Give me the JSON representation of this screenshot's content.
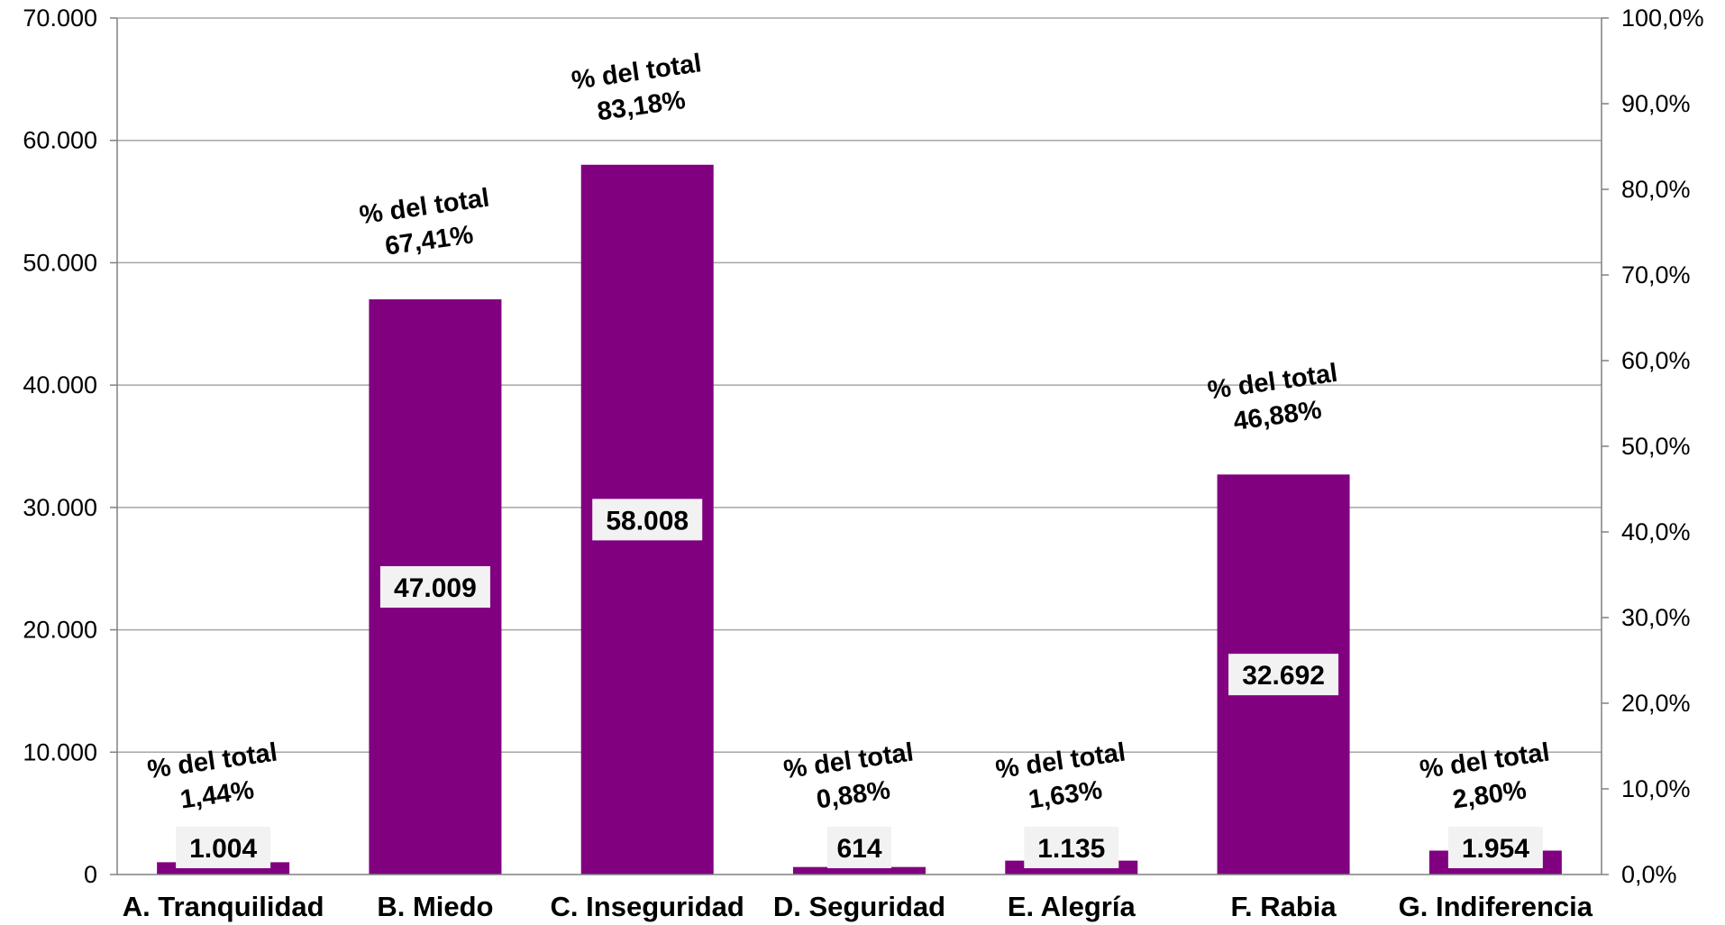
{
  "chart_data": {
    "type": "bar",
    "categories": [
      "A. Tranquilidad",
      "B. Miedo",
      "C. Inseguridad",
      "D. Seguridad",
      "E. Alegría",
      "F. Rabia",
      "G. Indiferencia"
    ],
    "values": [
      1004,
      47009,
      58008,
      614,
      1135,
      32692,
      1954
    ],
    "value_labels": [
      "1.004",
      "47.009",
      "58.008",
      "614",
      "1.135",
      "32.692",
      "1.954"
    ],
    "percent_labels": [
      {
        "line1": "% del total",
        "line2": "1,44%"
      },
      {
        "line1": "% del total",
        "line2": "67,41%"
      },
      {
        "line1": "% del total",
        "line2": "83,18%"
      },
      {
        "line1": "% del total",
        "line2": "0,88%"
      },
      {
        "line1": "% del total",
        "line2": "1,63%"
      },
      {
        "line1": "% del total",
        "line2": "46,88%"
      },
      {
        "line1": "% del total",
        "line2": "2,80%"
      }
    ],
    "ylim": [
      0,
      70000
    ],
    "y_ticks": [
      "0",
      "10.000",
      "20.000",
      "30.000",
      "40.000",
      "50.000",
      "60.000",
      "70.000"
    ],
    "y2lim": [
      0,
      100
    ],
    "y2_ticks": [
      "0,0%",
      "10,0%",
      "20,0%",
      "30,0%",
      "40,0%",
      "50,0%",
      "60,0%",
      "70,0%",
      "80,0%",
      "90,0%",
      "100,0%"
    ],
    "grid": true,
    "bar_color": "#800080",
    "gridline_color": "#a6a6a6",
    "axis_color": "#808080"
  }
}
